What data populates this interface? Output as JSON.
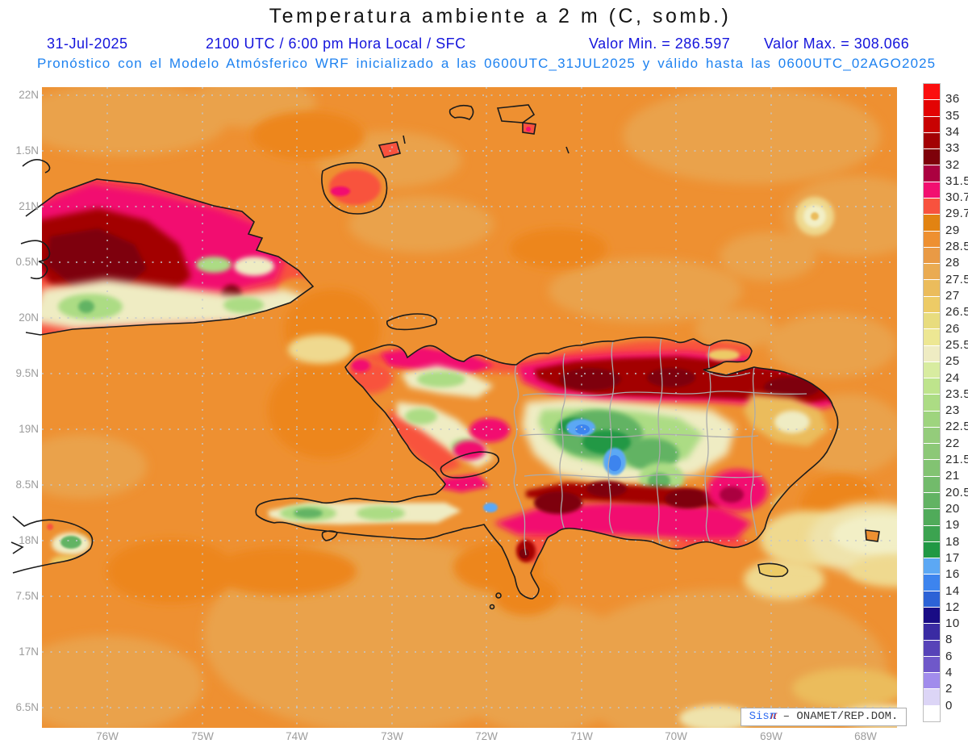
{
  "title": "Temperatura ambiente a 2 m (C, somb.)",
  "subtitle": {
    "date": "31-Jul-2025",
    "validity": "2100 UTC / 6:00 pm Hora Local / SFC",
    "value_min": "Valor Min. = 286.597",
    "value_max": "Valor Max. = 308.066",
    "model_line": "Pronóstico con el Modelo Atmósferico WRF inicializado a las 0600UTC_31JUL2025 y válido hasta las  0600UTC_02AGO2025"
  },
  "axes": {
    "y_ticks": [
      "22N",
      "1.5N",
      "21N",
      "0.5N",
      "20N",
      "9.5N",
      "19N",
      "8.5N",
      "18N",
      "7.5N",
      "17N",
      "6.5N"
    ],
    "x_ticks": [
      "76W",
      "75W",
      "74W",
      "73W",
      "72W",
      "71W",
      "70W",
      "69W",
      "68W"
    ]
  },
  "colorbar": {
    "tick_labels": [
      "36",
      "35",
      "34",
      "33",
      "32",
      "31.5",
      "30.7",
      "29.7",
      "29",
      "28.5",
      "28",
      "27.5",
      "27",
      "26.5",
      "26",
      "25.5",
      "25",
      "24",
      "23.5",
      "23",
      "22.5",
      "22",
      "21.5",
      "21",
      "20.5",
      "20",
      "19",
      "18",
      "17",
      "16",
      "14",
      "12",
      "10",
      "8",
      "6",
      "4",
      "2",
      "0"
    ],
    "segment_colors": [
      "#FB0E0E",
      "#E30303",
      "#C80202",
      "#A30104",
      "#7E010A",
      "#AB0140",
      "#F20F70",
      "#F8523E",
      "#E28312",
      "#EE9031",
      "#E99A45",
      "#EAAB52",
      "#EBBC5C",
      "#EDCB66",
      "#E8DC7E",
      "#EDE793",
      "#EFECC3",
      "#D8ECA0",
      "#BEE48C",
      "#ACDC84",
      "#9ED47E",
      "#94CC7B",
      "#8CC877",
      "#82C372",
      "#72BB6B",
      "#62B363",
      "#50AB5A",
      "#3CA350",
      "#209844",
      "#5CA8F4",
      "#3D84EE",
      "#2C62D6",
      "#190C85",
      "#3A2BA3",
      "#5743B8",
      "#6F58C9",
      "#A18CEC",
      "#DCD5F6",
      "#FFFFFF"
    ]
  },
  "watermark": {
    "brand": "Sis",
    "pi": "π",
    "text": "– ONAMET/REP.DOM."
  },
  "colors": {
    "header_line1": "#1414DC",
    "header_line2": "#1E82F0",
    "axis_ticks": "#9C9C9C",
    "ocean_base": "#EE9031",
    "coastline": "#1B1B1B",
    "province_borders": "#ABABAB"
  }
}
